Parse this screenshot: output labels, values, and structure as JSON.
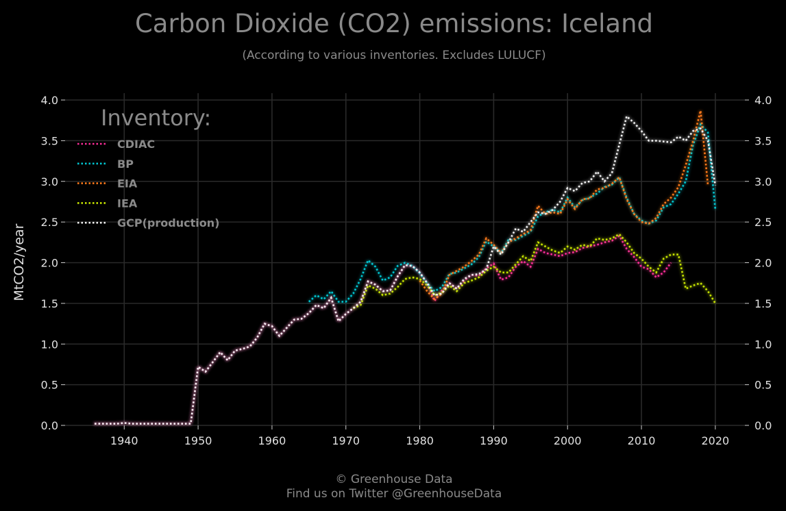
{
  "chart_data": {
    "type": "line",
    "title": "Carbon Dioxide (CO2) emissions: Iceland",
    "subtitle": "(According to various inventories. Excludes LULUCF)",
    "ylabel": "MtCO2/year",
    "xlabel": "",
    "xlim": [
      1932,
      2024
    ],
    "ylim": [
      0,
      4.0
    ],
    "xticks": [
      1940,
      1950,
      1960,
      1970,
      1980,
      1990,
      2000,
      2010,
      2020
    ],
    "yticks": [
      0.0,
      0.5,
      1.0,
      1.5,
      2.0,
      2.5,
      3.0,
      3.5,
      4.0
    ],
    "ytick_labels": [
      "0.0",
      "0.5",
      "1.0",
      "1.5",
      "2.0",
      "2.5",
      "3.0",
      "3.5",
      "4.0"
    ],
    "grid": true,
    "legend_title": "Inventory:",
    "legend_position": "top-left",
    "series": [
      {
        "name": "CDIAC",
        "color": "#ff2e9a",
        "x": [
          1936,
          1937,
          1938,
          1939,
          1940,
          1941,
          1942,
          1943,
          1944,
          1945,
          1946,
          1947,
          1948,
          1949,
          1950,
          1951,
          1952,
          1953,
          1954,
          1955,
          1956,
          1957,
          1958,
          1959,
          1960,
          1961,
          1962,
          1963,
          1964,
          1965,
          1966,
          1967,
          1968,
          1969,
          1970,
          1971,
          1972,
          1973,
          1974,
          1975,
          1976,
          1977,
          1978,
          1979,
          1980,
          1981,
          1982,
          1983,
          1984,
          1985,
          1986,
          1987,
          1988,
          1989,
          1990,
          1991,
          1992,
          1993,
          1994,
          1995,
          1996,
          1997,
          1998,
          1999,
          2000,
          2001,
          2002,
          2003,
          2004,
          2005,
          2006,
          2007,
          2008,
          2009,
          2010,
          2011,
          2012,
          2013,
          2014
        ],
        "values": [
          0.02,
          0.02,
          0.02,
          0.02,
          0.03,
          0.02,
          0.02,
          0.02,
          0.02,
          0.02,
          0.02,
          0.02,
          0.02,
          0.02,
          0.72,
          0.66,
          0.78,
          0.9,
          0.8,
          0.92,
          0.94,
          0.97,
          1.08,
          1.25,
          1.22,
          1.1,
          1.2,
          1.3,
          1.31,
          1.38,
          1.48,
          1.44,
          1.57,
          1.28,
          1.37,
          1.44,
          1.52,
          1.77,
          1.73,
          1.65,
          1.66,
          1.83,
          1.97,
          1.96,
          1.88,
          1.75,
          1.53,
          1.66,
          1.75,
          1.68,
          1.78,
          1.85,
          1.84,
          1.93,
          1.99,
          1.79,
          1.82,
          1.95,
          2.02,
          1.95,
          2.17,
          2.12,
          2.1,
          2.08,
          2.12,
          2.13,
          2.18,
          2.2,
          2.22,
          2.25,
          2.27,
          2.33,
          2.17,
          2.07,
          1.95,
          1.92,
          1.82,
          1.88,
          2.0
        ]
      },
      {
        "name": "BP",
        "color": "#00c8d4",
        "x": [
          1965,
          1966,
          1967,
          1968,
          1969,
          1970,
          1971,
          1972,
          1973,
          1974,
          1975,
          1976,
          1977,
          1978,
          1979,
          1980,
          1981,
          1982,
          1983,
          1984,
          1985,
          1986,
          1987,
          1988,
          1989,
          1990,
          1991,
          1992,
          1993,
          1994,
          1995,
          1996,
          1997,
          1998,
          1999,
          2000,
          2001,
          2002,
          2003,
          2004,
          2005,
          2006,
          2007,
          2008,
          2009,
          2010,
          2011,
          2012,
          2013,
          2014,
          2015,
          2016,
          2017,
          2018,
          2019,
          2020
        ],
        "values": [
          1.52,
          1.6,
          1.55,
          1.65,
          1.52,
          1.52,
          1.62,
          1.8,
          2.03,
          1.95,
          1.78,
          1.82,
          1.96,
          2.0,
          1.96,
          1.87,
          1.75,
          1.65,
          1.7,
          1.86,
          1.88,
          1.93,
          1.98,
          2.07,
          2.26,
          2.2,
          2.12,
          2.28,
          2.28,
          2.33,
          2.38,
          2.57,
          2.62,
          2.65,
          2.62,
          2.8,
          2.68,
          2.77,
          2.8,
          2.85,
          2.93,
          2.96,
          3.05,
          2.8,
          2.6,
          2.52,
          2.48,
          2.52,
          2.68,
          2.72,
          2.85,
          3.0,
          3.45,
          3.7,
          3.6,
          2.65
        ]
      },
      {
        "name": "EIA",
        "color": "#ff7a1a",
        "x": [
          1980,
          1981,
          1982,
          1983,
          1984,
          1985,
          1986,
          1987,
          1988,
          1989,
          1990,
          1991,
          1992,
          1993,
          1994,
          1995,
          1996,
          1997,
          1998,
          1999,
          2000,
          2001,
          2002,
          2003,
          2004,
          2005,
          2006,
          2007,
          2008,
          2009,
          2010,
          2011,
          2012,
          2013,
          2014,
          2015,
          2016,
          2017,
          2018,
          2019
        ],
        "values": [
          1.78,
          1.65,
          1.55,
          1.62,
          1.85,
          1.9,
          1.95,
          2.02,
          2.1,
          2.3,
          2.22,
          2.12,
          2.25,
          2.3,
          2.35,
          2.4,
          2.7,
          2.6,
          2.62,
          2.6,
          2.78,
          2.66,
          2.78,
          2.79,
          2.9,
          2.92,
          2.97,
          3.05,
          2.78,
          2.6,
          2.5,
          2.48,
          2.55,
          2.72,
          2.8,
          2.93,
          3.2,
          3.5,
          3.87,
          2.95
        ]
      },
      {
        "name": "IEA",
        "color": "#c8e600",
        "x": [
          1971,
          1972,
          1973,
          1974,
          1975,
          1976,
          1977,
          1978,
          1979,
          1980,
          1981,
          1982,
          1983,
          1984,
          1985,
          1986,
          1987,
          1988,
          1989,
          1990,
          1991,
          1992,
          1993,
          1994,
          1995,
          1996,
          1997,
          1998,
          1999,
          2000,
          2001,
          2002,
          2003,
          2004,
          2005,
          2006,
          2007,
          2008,
          2009,
          2010,
          2011,
          2012,
          2013,
          2014,
          2015,
          2016,
          2017,
          2018,
          2019,
          2020
        ],
        "values": [
          1.44,
          1.48,
          1.72,
          1.68,
          1.6,
          1.62,
          1.7,
          1.8,
          1.82,
          1.8,
          1.72,
          1.6,
          1.63,
          1.72,
          1.65,
          1.75,
          1.78,
          1.82,
          1.9,
          1.95,
          1.88,
          1.88,
          1.98,
          2.08,
          2.02,
          2.25,
          2.2,
          2.15,
          2.12,
          2.2,
          2.16,
          2.22,
          2.2,
          2.3,
          2.28,
          2.3,
          2.35,
          2.25,
          2.12,
          2.05,
          1.95,
          1.88,
          2.05,
          2.1,
          2.1,
          1.68,
          1.72,
          1.75,
          1.65,
          1.5
        ]
      },
      {
        "name": "GCP(production)",
        "color": "#f2f2f2",
        "x": [
          1936,
          1937,
          1938,
          1939,
          1940,
          1941,
          1942,
          1943,
          1944,
          1945,
          1946,
          1947,
          1948,
          1949,
          1950,
          1951,
          1952,
          1953,
          1954,
          1955,
          1956,
          1957,
          1958,
          1959,
          1960,
          1961,
          1962,
          1963,
          1964,
          1965,
          1966,
          1967,
          1968,
          1969,
          1970,
          1971,
          1972,
          1973,
          1974,
          1975,
          1976,
          1977,
          1978,
          1979,
          1980,
          1981,
          1982,
          1983,
          1984,
          1985,
          1986,
          1987,
          1988,
          1989,
          1990,
          1991,
          1992,
          1993,
          1994,
          1995,
          1996,
          1997,
          1998,
          1999,
          2000,
          2001,
          2002,
          2003,
          2004,
          2005,
          2006,
          2007,
          2008,
          2009,
          2010,
          2011,
          2012,
          2013,
          2014,
          2015,
          2016,
          2017,
          2018,
          2019,
          2020
        ],
        "values": [
          0.02,
          0.02,
          0.02,
          0.02,
          0.03,
          0.02,
          0.02,
          0.02,
          0.02,
          0.02,
          0.02,
          0.02,
          0.02,
          0.02,
          0.72,
          0.66,
          0.78,
          0.9,
          0.8,
          0.92,
          0.94,
          0.97,
          1.08,
          1.25,
          1.22,
          1.1,
          1.2,
          1.3,
          1.31,
          1.38,
          1.48,
          1.44,
          1.57,
          1.28,
          1.37,
          1.44,
          1.52,
          1.77,
          1.73,
          1.65,
          1.66,
          1.83,
          1.97,
          1.96,
          1.88,
          1.75,
          1.6,
          1.62,
          1.75,
          1.68,
          1.8,
          1.85,
          1.86,
          1.92,
          2.2,
          2.1,
          2.25,
          2.42,
          2.38,
          2.5,
          2.62,
          2.6,
          2.65,
          2.75,
          2.92,
          2.88,
          2.98,
          3.0,
          3.12,
          3.0,
          3.1,
          3.45,
          3.8,
          3.72,
          3.62,
          3.5,
          3.5,
          3.49,
          3.48,
          3.55,
          3.5,
          3.62,
          3.65,
          3.5,
          2.95
        ]
      }
    ]
  },
  "footer": {
    "copyright": "© Greenhouse Data",
    "social": "Find us on Twitter @GreenhouseData"
  }
}
